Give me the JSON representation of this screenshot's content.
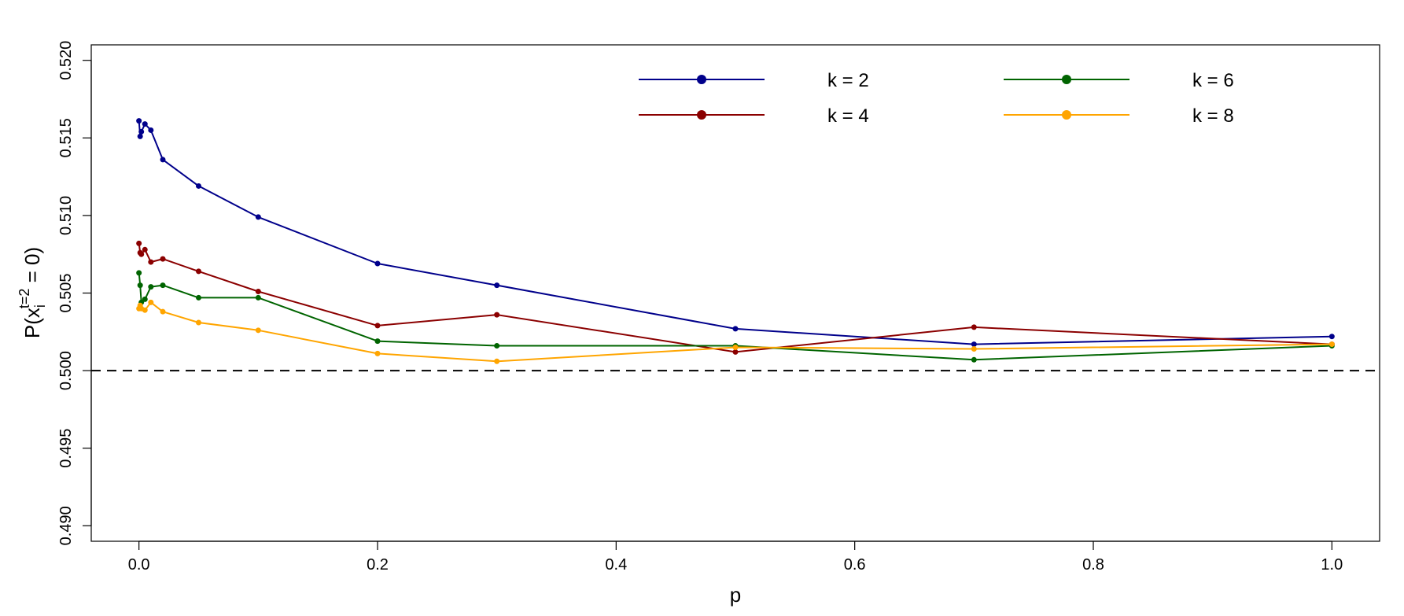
{
  "chart_data": {
    "type": "line",
    "xlabel": "p",
    "ylabel": {
      "prefix": "P(x",
      "subscript": "i",
      "superscript": "t=2",
      "suffix": " = 0)"
    },
    "xlim": [
      -0.04,
      1.04
    ],
    "ylim": [
      0.489,
      0.521
    ],
    "x_ticks": [
      0.0,
      0.2,
      0.4,
      0.6,
      0.8,
      1.0
    ],
    "x_tick_labels": [
      "0.0",
      "0.2",
      "0.4",
      "0.6",
      "0.8",
      "1.0"
    ],
    "y_ticks": [
      0.49,
      0.495,
      0.5,
      0.505,
      0.51,
      0.515,
      0.52
    ],
    "y_tick_labels": [
      "0.490",
      "0.495",
      "0.500",
      "0.505",
      "0.510",
      "0.515",
      "0.520"
    ],
    "reference_line": {
      "y": 0.5,
      "style": "dashed",
      "color": "#000000"
    },
    "grid": false,
    "legend_position": "top-right",
    "x": [
      0.0,
      0.001,
      0.002,
      0.005,
      0.01,
      0.02,
      0.05,
      0.1,
      0.2,
      0.3,
      0.5,
      0.7,
      1.0
    ],
    "series": [
      {
        "name": "k = 2",
        "color": "#00008b",
        "values": [
          0.5161,
          0.5151,
          0.5154,
          0.5159,
          0.5155,
          0.5136,
          0.5119,
          0.5099,
          0.5069,
          0.5055,
          0.5027,
          0.5017,
          0.5022
        ]
      },
      {
        "name": "k = 4",
        "color": "#8b0000",
        "values": [
          0.5082,
          0.5076,
          0.5075,
          0.5078,
          0.507,
          0.5072,
          0.5064,
          0.5051,
          0.5029,
          0.5036,
          0.5012,
          0.5028,
          0.5017
        ]
      },
      {
        "name": "k = 6",
        "color": "#006400",
        "values": [
          0.5063,
          0.5055,
          0.5044,
          0.5046,
          0.5054,
          0.5055,
          0.5047,
          0.5047,
          0.5019,
          0.5016,
          0.5016,
          0.5007,
          0.5016
        ]
      },
      {
        "name": "k = 8",
        "color": "#ffa500",
        "values": [
          0.504,
          0.5042,
          0.504,
          0.5039,
          0.5044,
          0.5038,
          0.5031,
          0.5026,
          0.5011,
          0.5006,
          0.5015,
          0.5014,
          0.5017
        ]
      }
    ]
  }
}
